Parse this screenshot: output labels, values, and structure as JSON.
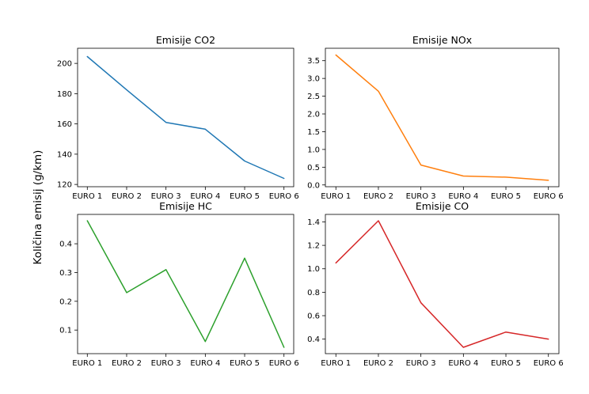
{
  "figure": {
    "ylabel": "Količina emisij (g/km)"
  },
  "chart_data": [
    {
      "type": "line",
      "title": "Emisije CO2",
      "categories": [
        "EURO 1",
        "EURO 2",
        "EURO 3",
        "EURO 4",
        "EURO 5",
        "EURO 6"
      ],
      "values": [
        204.5,
        182.5,
        161,
        156.5,
        135.5,
        124
      ],
      "color": "#1f77b4",
      "ylim": [
        118.5,
        210
      ],
      "yticks": [
        120,
        140,
        160,
        180,
        200
      ],
      "ytick_labels": [
        "120",
        "140",
        "160",
        "180",
        "200"
      ]
    },
    {
      "type": "line",
      "title": "Emisije NOx",
      "categories": [
        "EURO 1",
        "EURO 2",
        "EURO 3",
        "EURO 4",
        "EURO 5",
        "EURO 6"
      ],
      "values": [
        3.66,
        2.64,
        0.56,
        0.25,
        0.22,
        0.13
      ],
      "color": "#ff7f0e",
      "ylim": [
        -0.05,
        3.85
      ],
      "yticks": [
        0,
        0.5,
        1,
        1.5,
        2,
        2.5,
        3,
        3.5
      ],
      "ytick_labels": [
        "0.0",
        "0.5",
        "1.0",
        "1.5",
        "2.0",
        "2.5",
        "3.0",
        "3.5"
      ]
    },
    {
      "type": "line",
      "title": "Emisije HC",
      "categories": [
        "EURO 1",
        "EURO 2",
        "EURO 3",
        "EURO 4",
        "EURO 5",
        "EURO 6"
      ],
      "values": [
        0.48,
        0.23,
        0.31,
        0.06,
        0.35,
        0.04
      ],
      "color": "#2ca02c",
      "ylim": [
        0.018,
        0.502
      ],
      "yticks": [
        0.1,
        0.2,
        0.3,
        0.4
      ],
      "ytick_labels": [
        "0.1",
        "0.2",
        "0.3",
        "0.4"
      ]
    },
    {
      "type": "line",
      "title": "Emisije CO",
      "categories": [
        "EURO 1",
        "EURO 2",
        "EURO 3",
        "EURO 4",
        "EURO 5",
        "EURO 6"
      ],
      "values": [
        1.05,
        1.41,
        0.71,
        0.33,
        0.46,
        0.4
      ],
      "color": "#d62728",
      "ylim": [
        0.276,
        1.464
      ],
      "yticks": [
        0.4,
        0.6,
        0.8,
        1.0,
        1.2,
        1.4
      ],
      "ytick_labels": [
        "0.4",
        "0.6",
        "0.8",
        "1.0",
        "1.2",
        "1.4"
      ]
    }
  ]
}
